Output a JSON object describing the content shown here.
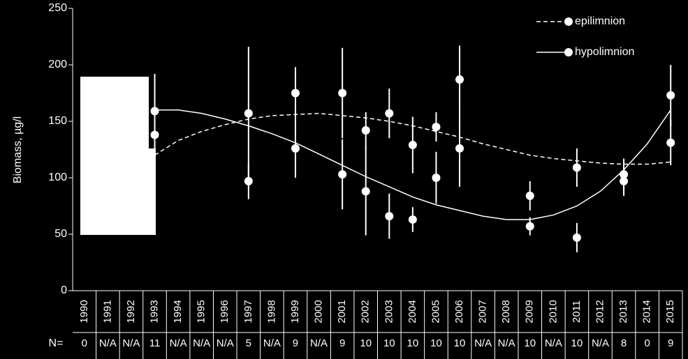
{
  "chart_data": {
    "type": "errorbar-scatter",
    "ylabel": "Biomass, µg/l",
    "categories": [
      "1990",
      "1991",
      "1992",
      "1993",
      "1994",
      "1995",
      "1996",
      "1997",
      "1998",
      "1999",
      "2000",
      "2001",
      "2002",
      "2003",
      "2004",
      "2005",
      "2006",
      "2007",
      "2008",
      "2009",
      "2010",
      "2011",
      "2012",
      "2013",
      "2014",
      "2015"
    ],
    "ylim": [
      0,
      250
    ],
    "yticks": [
      0,
      50,
      100,
      150,
      200,
      250
    ],
    "legend": "upper right",
    "n_label": "N=",
    "n_values": [
      0,
      "N/A",
      "N/A",
      11,
      "N/A",
      "N/A",
      "N/A",
      5,
      "N/A",
      9,
      "N/A",
      9,
      10,
      10,
      10,
      10,
      10,
      "N/A",
      "N/A",
      10,
      "N/A",
      10,
      "N/A",
      8,
      0,
      9
    ],
    "series": [
      {
        "name": "epilimnion",
        "color": "#ffffff",
        "dashed": true,
        "values": [
          null,
          null,
          null,
          138,
          null,
          null,
          null,
          157,
          null,
          175,
          null,
          175,
          142,
          157,
          129,
          145,
          187,
          null,
          null,
          84,
          null,
          109,
          null,
          97,
          null,
          131
        ],
        "errors": [
          null,
          null,
          null,
          12,
          null,
          null,
          null,
          59,
          null,
          23,
          null,
          40,
          16,
          22,
          25,
          13,
          30,
          null,
          null,
          13,
          null,
          17,
          null,
          13,
          null,
          20
        ],
        "trend": [
          null,
          null,
          null,
          120,
          133,
          141,
          147,
          152,
          155,
          156,
          157,
          155,
          153,
          150,
          146,
          141,
          136,
          130,
          125,
          120,
          117,
          115,
          113,
          112,
          112,
          114
        ]
      },
      {
        "name": "hypolimnion",
        "color": "#ffffff",
        "dashed": false,
        "values": [
          null,
          null,
          null,
          159,
          null,
          null,
          null,
          97,
          null,
          126,
          null,
          103,
          88,
          66,
          63,
          100,
          126,
          null,
          null,
          57,
          null,
          47,
          null,
          103,
          null,
          173
        ],
        "errors": [
          null,
          null,
          null,
          33,
          null,
          null,
          null,
          16,
          null,
          26,
          null,
          31,
          39,
          20,
          11,
          23,
          34,
          null,
          null,
          8,
          null,
          13,
          null,
          14,
          null,
          27
        ],
        "trend": [
          null,
          null,
          null,
          160,
          160,
          157,
          152,
          146,
          139,
          131,
          121,
          111,
          101,
          92,
          83,
          76,
          71,
          66,
          63,
          63,
          67,
          75,
          88,
          107,
          130,
          160
        ]
      }
    ]
  }
}
